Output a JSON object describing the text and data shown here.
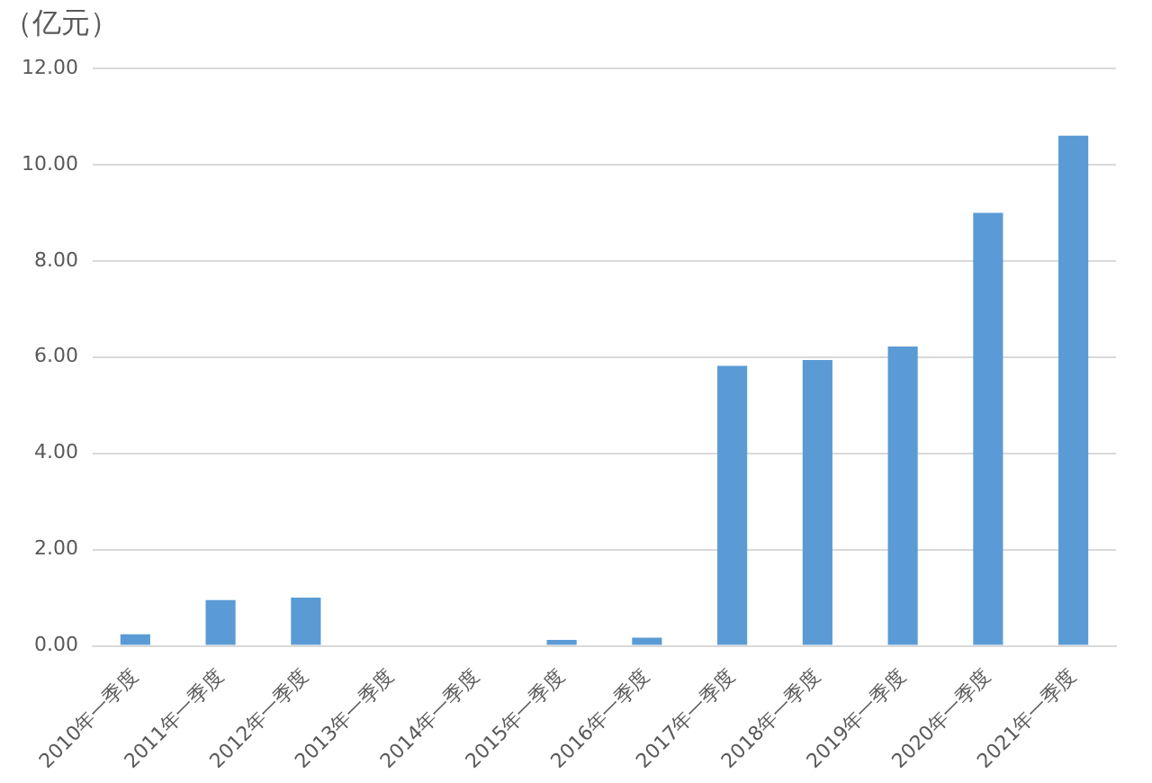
{
  "chart_data": {
    "type": "bar",
    "ylabel": "（亿元）",
    "categories": [
      "2010年一季度",
      "2011年一季度",
      "2012年一季度",
      "2013年一季度",
      "2014年一季度",
      "2015年一季度",
      "2016年一季度",
      "2017年一季度",
      "2018年一季度",
      "2019年一季度",
      "2020年一季度",
      "2021年一季度"
    ],
    "values": [
      0.24,
      0.95,
      1.0,
      0,
      0,
      0.12,
      0.17,
      5.82,
      5.94,
      6.22,
      9.0,
      10.6
    ],
    "color": "#5b9bd5",
    "ylim": [
      0,
      12
    ],
    "yticks": [
      {
        "value": 0,
        "label": "0.00"
      },
      {
        "value": 2,
        "label": "2.00"
      },
      {
        "value": 4,
        "label": "4.00"
      },
      {
        "value": 6,
        "label": "6.00"
      },
      {
        "value": 8,
        "label": "8.00"
      },
      {
        "value": 10,
        "label": "10.00"
      },
      {
        "value": 12,
        "label": "12.00"
      }
    ],
    "grid": "y",
    "legend": false
  }
}
